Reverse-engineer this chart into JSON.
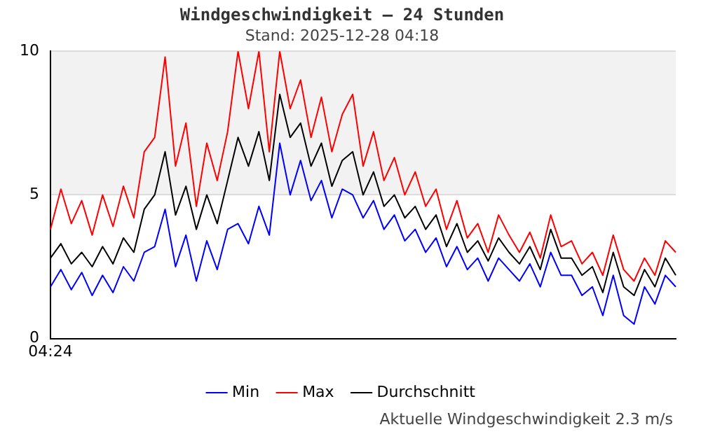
{
  "chart_data": {
    "type": "line",
    "title": "Windgeschwindigkeit – 24 Stunden",
    "subtitle": "Stand: 2025-12-28 04:18",
    "categories": [
      "04:24",
      null,
      null,
      null,
      null,
      null,
      null,
      null,
      null,
      null,
      null,
      null,
      null,
      null,
      null,
      null,
      null,
      null,
      null,
      null,
      null,
      null,
      null,
      null,
      null,
      null,
      null,
      null,
      null,
      null,
      null,
      null,
      null,
      null,
      null,
      null,
      null,
      null,
      null,
      null,
      null,
      null,
      null,
      null,
      null,
      null,
      null,
      null,
      null,
      null,
      null,
      null,
      null,
      null,
      null,
      null,
      null,
      null,
      null,
      null,
      null
    ],
    "series": [
      {
        "name": "Min",
        "color": "#0000ff",
        "values": [
          1.8,
          2.4,
          1.7,
          2.3,
          1.5,
          2.2,
          1.6,
          2.5,
          2.0,
          3.0,
          3.2,
          4.5,
          2.5,
          3.6,
          2.0,
          3.4,
          2.4,
          3.8,
          4.0,
          3.3,
          4.6,
          3.6,
          6.8,
          5.0,
          6.2,
          4.8,
          5.5,
          4.2,
          5.2,
          5.0,
          4.2,
          4.8,
          3.8,
          4.3,
          3.4,
          3.8,
          3.0,
          3.5,
          2.5,
          3.2,
          2.4,
          2.8,
          2.0,
          2.8,
          2.4,
          2.0,
          2.6,
          1.8,
          3.0,
          2.2,
          2.2,
          1.5,
          1.8,
          0.8,
          2.2,
          0.8,
          0.5,
          1.8,
          1.2,
          2.2,
          1.8
        ]
      },
      {
        "name": "Max",
        "color": "#ff0000",
        "values": [
          3.8,
          5.2,
          4.0,
          4.8,
          3.6,
          5.0,
          3.9,
          5.3,
          4.2,
          6.5,
          7.0,
          9.8,
          6.0,
          7.5,
          4.6,
          6.8,
          5.5,
          7.2,
          10,
          8.0,
          10,
          6.5,
          10,
          8.0,
          9.0,
          7.0,
          8.4,
          6.5,
          7.8,
          8.5,
          6.0,
          7.2,
          5.5,
          6.3,
          5.0,
          5.8,
          4.6,
          5.2,
          3.8,
          4.8,
          3.5,
          4.0,
          3.0,
          4.3,
          3.6,
          3.0,
          3.7,
          2.8,
          4.3,
          3.2,
          3.4,
          2.6,
          3.0,
          2.2,
          3.6,
          2.4,
          2.0,
          2.8,
          2.2,
          3.4,
          3.0
        ]
      },
      {
        "name": "Durchschnitt",
        "color": "#000000",
        "values": [
          2.8,
          3.3,
          2.6,
          3.0,
          2.5,
          3.2,
          2.6,
          3.5,
          3.0,
          4.5,
          5.0,
          6.5,
          4.3,
          5.3,
          3.8,
          5.0,
          4.0,
          5.5,
          7.0,
          6.0,
          7.2,
          5.5,
          8.5,
          7.0,
          7.5,
          6.0,
          6.8,
          5.3,
          6.2,
          6.5,
          5.0,
          5.8,
          4.6,
          5.0,
          4.2,
          4.6,
          3.8,
          4.3,
          3.2,
          4.0,
          3.0,
          3.4,
          2.7,
          3.5,
          3.0,
          2.6,
          3.2,
          2.4,
          3.8,
          2.8,
          2.8,
          2.2,
          2.5,
          1.6,
          3.0,
          1.8,
          1.5,
          2.4,
          1.8,
          2.8,
          2.2
        ]
      }
    ],
    "ylim": [
      0,
      10
    ],
    "yticks": [
      0,
      5,
      10
    ],
    "bands": [
      {
        "axis": "y",
        "from": 5,
        "to": 10,
        "color": "#f2f2f2"
      }
    ],
    "grid": "y",
    "legend": "bottom",
    "marker": "none",
    "line_style": "solid",
    "annotations": [
      "Aktuelle Windgeschwindigkeit 2.3 m/s"
    ]
  }
}
